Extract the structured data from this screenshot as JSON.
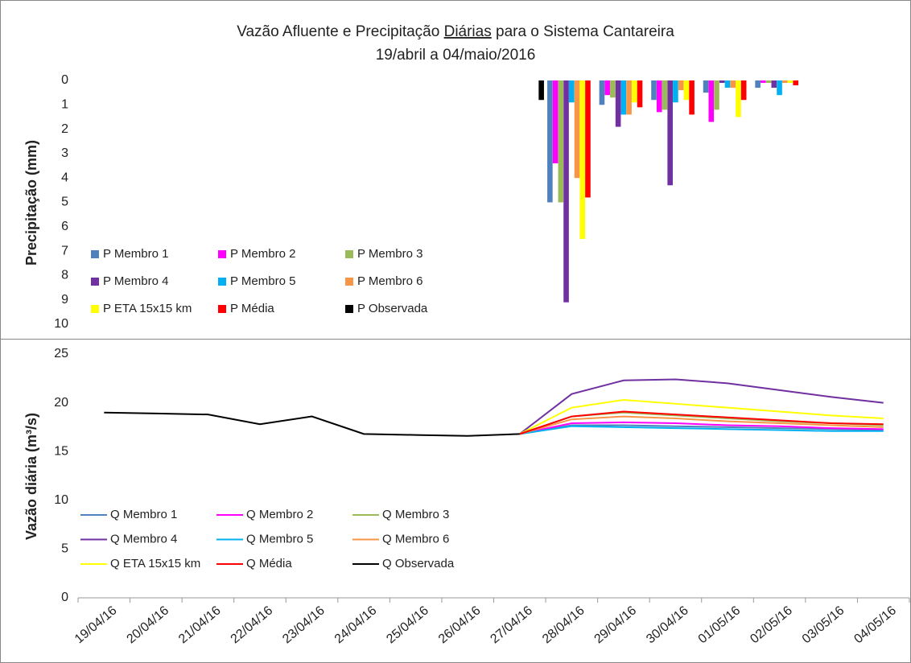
{
  "chart_data": [
    {
      "type": "bar",
      "title": [
        "Vazão Afluente e Precipitação ",
        "Diárias",
        " para o Sistema Cantareira"
      ],
      "subtitle": "19/abril a 04/maio/2016",
      "y_label": "Precipitação (mm)",
      "ylim": [
        0,
        10
      ],
      "yticks": [
        0,
        1,
        2,
        3,
        4,
        5,
        6,
        7,
        8,
        9,
        10
      ],
      "y_reversed": true,
      "series": [
        {
          "name": "P Membro 1",
          "color": "#4f81bd",
          "values": [
            null,
            null,
            null,
            null,
            null,
            null,
            null,
            null,
            null,
            5.0,
            1.0,
            0.8,
            0.5,
            0.3,
            null,
            null
          ]
        },
        {
          "name": "P Membro 2",
          "color": "#ff00ff",
          "values": [
            null,
            null,
            null,
            null,
            null,
            null,
            null,
            null,
            null,
            3.4,
            0.6,
            1.3,
            1.7,
            0.1,
            null,
            null
          ]
        },
        {
          "name": "P Membro 3",
          "color": "#9bbb59",
          "values": [
            null,
            null,
            null,
            null,
            null,
            null,
            null,
            null,
            null,
            5.0,
            0.7,
            1.2,
            1.2,
            0.1,
            null,
            null
          ]
        },
        {
          "name": "P Membro 4",
          "color": "#7030a0",
          "values": [
            null,
            null,
            null,
            null,
            null,
            null,
            null,
            null,
            null,
            9.1,
            1.9,
            4.3,
            0.1,
            0.3,
            null,
            null
          ]
        },
        {
          "name": "P Membro 5",
          "color": "#00b0f0",
          "values": [
            null,
            null,
            null,
            null,
            null,
            null,
            null,
            null,
            null,
            0.9,
            1.4,
            0.9,
            0.3,
            0.6,
            null,
            null
          ]
        },
        {
          "name": "P Membro 6",
          "color": "#f79646",
          "values": [
            null,
            null,
            null,
            null,
            null,
            null,
            null,
            null,
            null,
            4.0,
            1.4,
            0.4,
            0.3,
            0.1,
            null,
            null
          ]
        },
        {
          "name": "P ETA 15x15 km",
          "color": "#ffff00",
          "values": [
            null,
            null,
            null,
            null,
            null,
            null,
            null,
            null,
            null,
            6.5,
            0.9,
            0.8,
            1.5,
            0.1,
            null,
            null
          ]
        },
        {
          "name": "P Média",
          "color": "#ff0000",
          "values": [
            null,
            null,
            null,
            null,
            null,
            null,
            null,
            null,
            null,
            4.8,
            1.1,
            1.4,
            0.8,
            0.2,
            null,
            null
          ]
        },
        {
          "name": "P Observada",
          "color": "#000000",
          "values": [
            0,
            0,
            0,
            0,
            0,
            0,
            0,
            0,
            0.8,
            null,
            null,
            null,
            null,
            null,
            null,
            null
          ]
        }
      ]
    },
    {
      "type": "line",
      "y_label": "Vazão diária (m³/s)",
      "categories": [
        "19/04/16",
        "20/04/16",
        "21/04/16",
        "22/04/16",
        "23/04/16",
        "24/04/16",
        "25/04/16",
        "26/04/16",
        "27/04/16",
        "28/04/16",
        "29/04/16",
        "30/04/16",
        "01/05/16",
        "02/05/16",
        "03/05/16",
        "04/05/16"
      ],
      "ylim": [
        0,
        25
      ],
      "yticks": [
        0,
        5,
        10,
        15,
        20,
        25
      ],
      "series": [
        {
          "name": "Q Membro 1",
          "color": "#4f81bd",
          "values": [
            null,
            null,
            null,
            null,
            null,
            null,
            null,
            null,
            16.8,
            17.7,
            17.7,
            17.6,
            17.5,
            17.4,
            17.3,
            17.2
          ]
        },
        {
          "name": "Q Membro 2",
          "color": "#ff00ff",
          "values": [
            null,
            null,
            null,
            null,
            null,
            null,
            null,
            null,
            16.8,
            17.9,
            18.0,
            17.9,
            17.7,
            17.6,
            17.4,
            17.3
          ]
        },
        {
          "name": "Q Membro 3",
          "color": "#9bbb59",
          "values": [
            null,
            null,
            null,
            null,
            null,
            null,
            null,
            null,
            16.8,
            18.6,
            19.0,
            18.7,
            18.4,
            18.1,
            17.9,
            17.7
          ]
        },
        {
          "name": "Q Membro 4",
          "color": "#7030a0",
          "values": [
            null,
            null,
            null,
            null,
            null,
            null,
            null,
            null,
            16.8,
            20.9,
            22.3,
            22.4,
            22.0,
            21.3,
            20.6,
            20.0
          ]
        },
        {
          "name": "Q Membro 5",
          "color": "#00b0f0",
          "values": [
            null,
            null,
            null,
            null,
            null,
            null,
            null,
            null,
            16.8,
            17.6,
            17.5,
            17.4,
            17.3,
            17.2,
            17.1,
            17.1
          ]
        },
        {
          "name": "Q Membro 6",
          "color": "#f79646",
          "values": [
            null,
            null,
            null,
            null,
            null,
            null,
            null,
            null,
            16.8,
            18.3,
            18.6,
            18.4,
            18.1,
            17.9,
            17.7,
            17.5
          ]
        },
        {
          "name": "Q ETA 15x15 km",
          "color": "#ffff00",
          "values": [
            null,
            null,
            null,
            null,
            null,
            null,
            null,
            null,
            16.8,
            19.5,
            20.3,
            19.9,
            19.5,
            19.1,
            18.7,
            18.4
          ]
        },
        {
          "name": "Q Média",
          "color": "#ff0000",
          "values": [
            null,
            null,
            null,
            null,
            null,
            null,
            null,
            null,
            16.8,
            18.6,
            19.1,
            18.8,
            18.5,
            18.2,
            17.9,
            17.8
          ]
        },
        {
          "name": "Q Observada",
          "color": "#000000",
          "values": [
            19.0,
            18.9,
            18.8,
            17.8,
            18.6,
            16.8,
            16.7,
            16.6,
            16.8,
            null,
            null,
            null,
            null,
            null,
            null,
            null
          ]
        }
      ]
    }
  ]
}
